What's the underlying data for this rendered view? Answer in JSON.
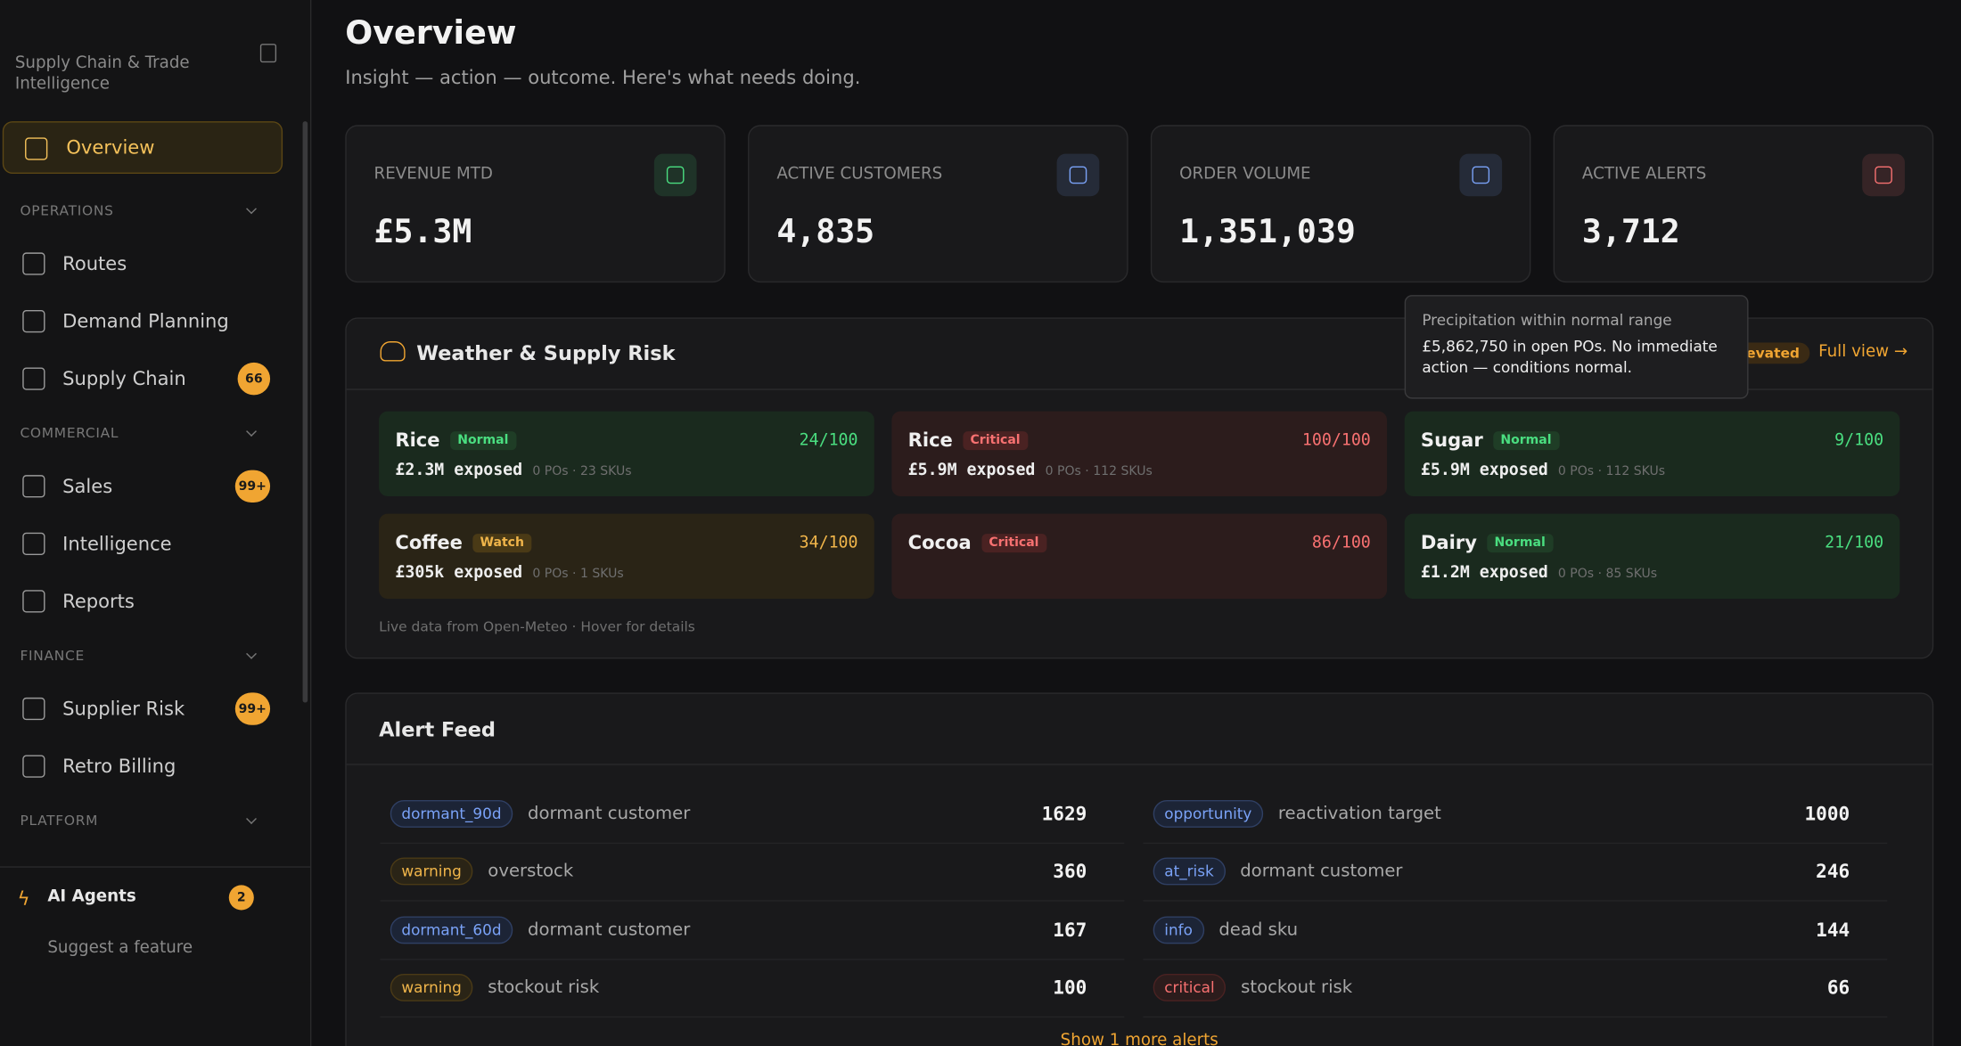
{
  "sidebar": {
    "subtitle": "Supply Chain & Trade Intelligence",
    "active": "Overview",
    "sections": [
      {
        "title": "OPERATIONS",
        "items": [
          {
            "label": "Routes"
          },
          {
            "label": "Demand Planning"
          },
          {
            "label": "Supply Chain",
            "badge": "66"
          }
        ]
      },
      {
        "title": "COMMERCIAL",
        "items": [
          {
            "label": "Sales",
            "badge": "99+"
          },
          {
            "label": "Intelligence"
          },
          {
            "label": "Reports"
          }
        ]
      },
      {
        "title": "FINANCE",
        "items": [
          {
            "label": "Supplier Risk",
            "badge": "99+"
          },
          {
            "label": "Retro Billing"
          }
        ]
      },
      {
        "title": "PLATFORM",
        "items": []
      }
    ],
    "footer": {
      "agents": "AI Agents",
      "agents_badge": "2",
      "suggest": "Suggest a feature"
    }
  },
  "header": {
    "title": "Overview",
    "subtitle": "Insight — action — outcome. Here's what needs doing."
  },
  "kpis": [
    {
      "label": "REVENUE MTD",
      "value": "£5.3M",
      "color": "#4ade80"
    },
    {
      "label": "ACTIVE CUSTOMERS",
      "value": "4,835",
      "color": "#7aa2f7"
    },
    {
      "label": "ORDER VOLUME",
      "value": "1,351,039",
      "color": "#7aa2f7"
    },
    {
      "label": "ACTIVE ALERTS",
      "value": "3,712",
      "color": "#f87171"
    }
  ],
  "weather": {
    "title": "Weather & Supply Risk",
    "status": "Elevated",
    "link": "Full view →",
    "tiles": [
      {
        "name": "Rice",
        "status": "Normal",
        "score": "24/100",
        "exposure": "£2.3M exposed",
        "meta": "0 POs · 23 SKUs",
        "color": "green"
      },
      {
        "name": "Rice",
        "status": "Critical",
        "score": "100/100",
        "exposure": "£5.9M exposed",
        "meta": "0 POs · 112 SKUs",
        "color": "red"
      },
      {
        "name": "Sugar",
        "status": "Normal",
        "score": "9/100",
        "exposure": "£5.9M exposed",
        "meta": "0 POs · 112 SKUs",
        "color": "green"
      },
      {
        "name": "Coffee",
        "status": "Watch",
        "score": "34/100",
        "exposure": "£305k exposed",
        "meta": "0 POs · 1 SKUs",
        "color": "amber"
      },
      {
        "name": "Cocoa",
        "status": "Critical",
        "score": "86/100",
        "color": "red"
      },
      {
        "name": "Dairy",
        "status": "Normal",
        "score": "21/100",
        "exposure": "£1.2M exposed",
        "meta": "0 POs · 85 SKUs",
        "color": "green"
      }
    ],
    "footer": "Live data from Open-Meteo · Hover for details",
    "tooltip": {
      "title": "Precipitation within normal range",
      "body": "£5,862,750 in open POs. No immediate action — conditions normal."
    }
  },
  "alerts": {
    "title": "Alert Feed",
    "items": [
      {
        "tag": "dormant_90d",
        "text": "dormant customer",
        "count": "1629",
        "color": "blue"
      },
      {
        "tag": "opportunity",
        "text": "reactivation target",
        "count": "1000",
        "color": "blue"
      },
      {
        "tag": "warning",
        "text": "overstock",
        "count": "360",
        "color": "amber"
      },
      {
        "tag": "at_risk",
        "text": "dormant customer",
        "count": "246",
        "color": "blue"
      },
      {
        "tag": "dormant_60d",
        "text": "dormant customer",
        "count": "167",
        "color": "blue"
      },
      {
        "tag": "info",
        "text": "dead sku",
        "count": "144",
        "color": "blue"
      },
      {
        "tag": "warning",
        "text": "stockout risk",
        "count": "100",
        "color": "amber"
      },
      {
        "tag": "critical",
        "text": "stockout risk",
        "count": "66",
        "color": "red"
      }
    ],
    "more": "Show 1 more alerts"
  }
}
